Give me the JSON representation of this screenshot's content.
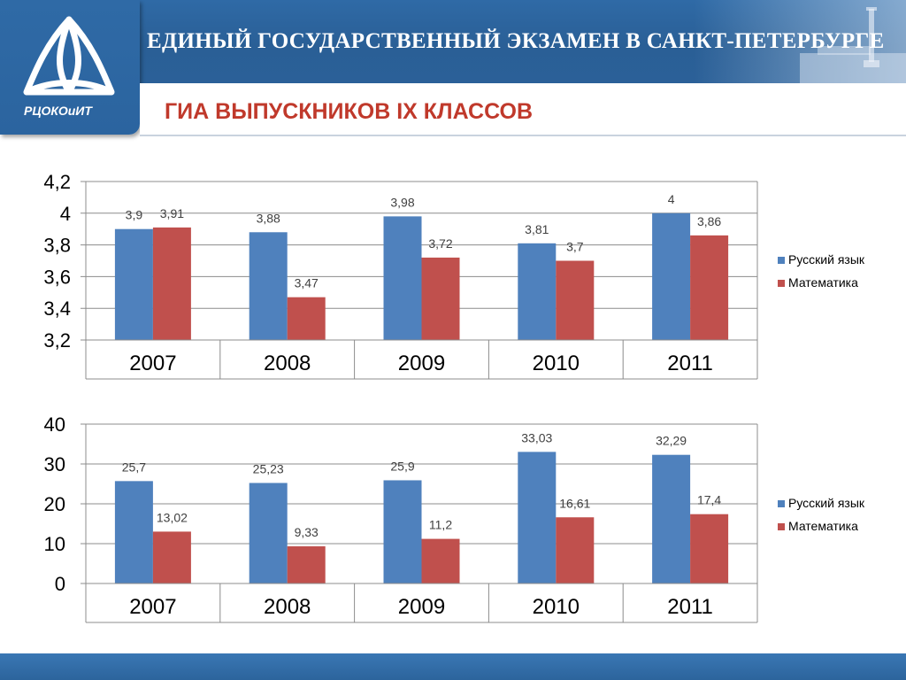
{
  "header": {
    "title": "ЕДИНЫЙ ГОСУДАРСТВЕННЫЙ ЭКЗАМЕН В САНКТ-ПЕТЕРБУРГЕ",
    "logo_text": "РЦОКОиИТ",
    "subtitle": "ГИА ВЫПУСКНИКОВ IX КЛАССОВ"
  },
  "colors": {
    "header_blue": "#2b6098",
    "series1": "#4f81bd",
    "series2": "#c0504d",
    "subtitle_red": "#c0392b"
  },
  "chart_data": [
    {
      "type": "bar",
      "categories": [
        "2007",
        "2008",
        "2009",
        "2010",
        "2011"
      ],
      "series": [
        {
          "name": "Русский язык",
          "values": [
            3.9,
            3.88,
            3.98,
            3.81,
            4
          ],
          "labels": [
            "3,9",
            "3,88",
            "3,98",
            "3,81",
            "4"
          ]
        },
        {
          "name": "Математика",
          "values": [
            3.91,
            3.47,
            3.72,
            3.7,
            3.86
          ],
          "labels": [
            "3,91",
            "3,47",
            "3,72",
            "3,7",
            "3,86"
          ]
        }
      ],
      "ylim": [
        3.2,
        4.2
      ],
      "yticks": [
        "3,2",
        "3,4",
        "3,6",
        "3,8",
        "4",
        "4,2"
      ],
      "grid": true,
      "legend": "right"
    },
    {
      "type": "bar",
      "categories": [
        "2007",
        "2008",
        "2009",
        "2010",
        "2011"
      ],
      "series": [
        {
          "name": "Русский язык",
          "values": [
            25.7,
            25.23,
            25.9,
            33.03,
            32.29
          ],
          "labels": [
            "25,7",
            "25,23",
            "25,9",
            "33,03",
            "32,29"
          ]
        },
        {
          "name": "Математика",
          "values": [
            13.02,
            9.33,
            11.2,
            16.61,
            17.4
          ],
          "labels": [
            "13,02",
            "9,33",
            "11,2",
            "16,61",
            "17,4"
          ]
        }
      ],
      "ylim": [
        0,
        40
      ],
      "yticks": [
        "0",
        "10",
        "20",
        "30",
        "40"
      ],
      "grid": true,
      "legend": "right"
    }
  ]
}
